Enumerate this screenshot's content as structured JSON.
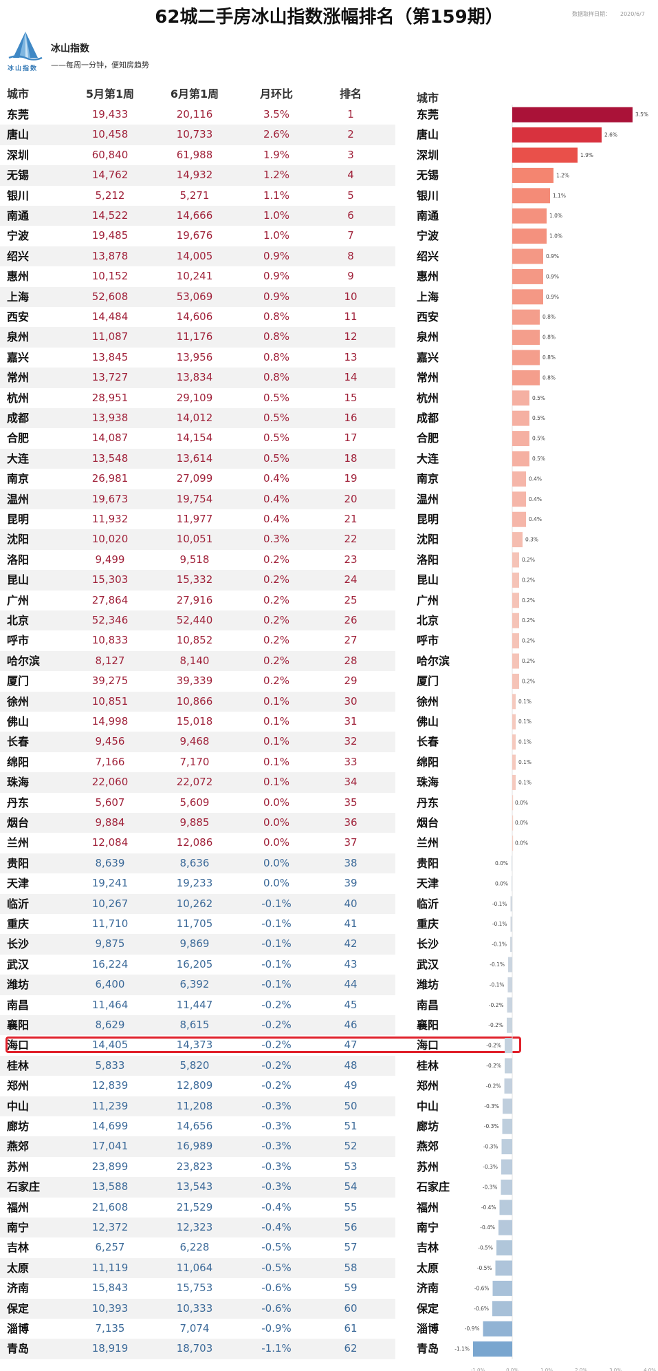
{
  "header": {
    "title": "62城二手房冰山指数涨幅排名（第159期）",
    "date_label": "数据取样日期：",
    "date_value": "2020/6/7"
  },
  "brand": {
    "logo_text": "冰山指数",
    "name": "冰山指数",
    "slogan": "——每周一分钟，便知房趋势"
  },
  "table": {
    "columns": [
      "城市",
      "5月第1周",
      "6月第1周",
      "月环比",
      "排名"
    ],
    "highlight_city": "海口",
    "colors": {
      "up": "#a0223a",
      "down": "#3c6a99"
    }
  },
  "chart_data": {
    "type": "bar",
    "orientation": "horizontal",
    "category_header": "城市",
    "unit": "%",
    "xlim": [
      -1.0,
      4.0
    ],
    "x_ticks": [
      "-1.0%",
      "0.0%",
      "1.0%",
      "2.0%",
      "3.0%",
      "4.0%"
    ],
    "rows": [
      {
        "city": "东莞",
        "may": "19,433",
        "jun": "20,116",
        "mom": "3.5%",
        "value": 3.5,
        "rank": "1"
      },
      {
        "city": "唐山",
        "may": "10,458",
        "jun": "10,733",
        "mom": "2.6%",
        "value": 2.6,
        "rank": "2"
      },
      {
        "city": "深圳",
        "may": "60,840",
        "jun": "61,988",
        "mom": "1.9%",
        "value": 1.9,
        "rank": "3"
      },
      {
        "city": "无锡",
        "may": "14,762",
        "jun": "14,932",
        "mom": "1.2%",
        "value": 1.2,
        "rank": "4"
      },
      {
        "city": "银川",
        "may": "5,212",
        "jun": "5,271",
        "mom": "1.1%",
        "value": 1.1,
        "rank": "5"
      },
      {
        "city": "南通",
        "may": "14,522",
        "jun": "14,666",
        "mom": "1.0%",
        "value": 1.0,
        "rank": "6"
      },
      {
        "city": "宁波",
        "may": "19,485",
        "jun": "19,676",
        "mom": "1.0%",
        "value": 1.0,
        "rank": "7"
      },
      {
        "city": "绍兴",
        "may": "13,878",
        "jun": "14,005",
        "mom": "0.9%",
        "value": 0.9,
        "rank": "8"
      },
      {
        "city": "惠州",
        "may": "10,152",
        "jun": "10,241",
        "mom": "0.9%",
        "value": 0.9,
        "rank": "9"
      },
      {
        "city": "上海",
        "may": "52,608",
        "jun": "53,069",
        "mom": "0.9%",
        "value": 0.9,
        "rank": "10"
      },
      {
        "city": "西安",
        "may": "14,484",
        "jun": "14,606",
        "mom": "0.8%",
        "value": 0.8,
        "rank": "11"
      },
      {
        "city": "泉州",
        "may": "11,087",
        "jun": "11,176",
        "mom": "0.8%",
        "value": 0.8,
        "rank": "12"
      },
      {
        "city": "嘉兴",
        "may": "13,845",
        "jun": "13,956",
        "mom": "0.8%",
        "value": 0.8,
        "rank": "13"
      },
      {
        "city": "常州",
        "may": "13,727",
        "jun": "13,834",
        "mom": "0.8%",
        "value": 0.8,
        "rank": "14"
      },
      {
        "city": "杭州",
        "may": "28,951",
        "jun": "29,109",
        "mom": "0.5%",
        "value": 0.5,
        "rank": "15"
      },
      {
        "city": "成都",
        "may": "13,938",
        "jun": "14,012",
        "mom": "0.5%",
        "value": 0.5,
        "rank": "16"
      },
      {
        "city": "合肥",
        "may": "14,087",
        "jun": "14,154",
        "mom": "0.5%",
        "value": 0.5,
        "rank": "17"
      },
      {
        "city": "大连",
        "may": "13,548",
        "jun": "13,614",
        "mom": "0.5%",
        "value": 0.5,
        "rank": "18"
      },
      {
        "city": "南京",
        "may": "26,981",
        "jun": "27,099",
        "mom": "0.4%",
        "value": 0.4,
        "rank": "19"
      },
      {
        "city": "温州",
        "may": "19,673",
        "jun": "19,754",
        "mom": "0.4%",
        "value": 0.4,
        "rank": "20"
      },
      {
        "city": "昆明",
        "may": "11,932",
        "jun": "11,977",
        "mom": "0.4%",
        "value": 0.4,
        "rank": "21"
      },
      {
        "city": "沈阳",
        "may": "10,020",
        "jun": "10,051",
        "mom": "0.3%",
        "value": 0.3,
        "rank": "22"
      },
      {
        "city": "洛阳",
        "may": "9,499",
        "jun": "9,518",
        "mom": "0.2%",
        "value": 0.2,
        "rank": "23"
      },
      {
        "city": "昆山",
        "may": "15,303",
        "jun": "15,332",
        "mom": "0.2%",
        "value": 0.2,
        "rank": "24"
      },
      {
        "city": "广州",
        "may": "27,864",
        "jun": "27,916",
        "mom": "0.2%",
        "value": 0.2,
        "rank": "25"
      },
      {
        "city": "北京",
        "may": "52,346",
        "jun": "52,440",
        "mom": "0.2%",
        "value": 0.2,
        "rank": "26"
      },
      {
        "city": "呼市",
        "may": "10,833",
        "jun": "10,852",
        "mom": "0.2%",
        "value": 0.2,
        "rank": "27"
      },
      {
        "city": "哈尔滨",
        "may": "8,127",
        "jun": "8,140",
        "mom": "0.2%",
        "value": 0.2,
        "rank": "28"
      },
      {
        "city": "厦门",
        "may": "39,275",
        "jun": "39,339",
        "mom": "0.2%",
        "value": 0.2,
        "rank": "29"
      },
      {
        "city": "徐州",
        "may": "10,851",
        "jun": "10,866",
        "mom": "0.1%",
        "value": 0.1,
        "rank": "30"
      },
      {
        "city": "佛山",
        "may": "14,998",
        "jun": "15,018",
        "mom": "0.1%",
        "value": 0.1,
        "rank": "31"
      },
      {
        "city": "长春",
        "may": "9,456",
        "jun": "9,468",
        "mom": "0.1%",
        "value": 0.1,
        "rank": "32"
      },
      {
        "city": "绵阳",
        "may": "7,166",
        "jun": "7,170",
        "mom": "0.1%",
        "value": 0.1,
        "rank": "33"
      },
      {
        "city": "珠海",
        "may": "22,060",
        "jun": "22,072",
        "mom": "0.1%",
        "value": 0.1,
        "rank": "34"
      },
      {
        "city": "丹东",
        "may": "5,607",
        "jun": "5,609",
        "mom": "0.0%",
        "value": 0.0,
        "rank": "35"
      },
      {
        "city": "烟台",
        "may": "9,884",
        "jun": "9,885",
        "mom": "0.0%",
        "value": 0.0,
        "rank": "36"
      },
      {
        "city": "兰州",
        "may": "12,084",
        "jun": "12,086",
        "mom": "0.0%",
        "value": 0.0,
        "rank": "37"
      },
      {
        "city": "贵阳",
        "may": "8,639",
        "jun": "8,636",
        "mom": "0.0%",
        "value": -0.02,
        "rank": "38"
      },
      {
        "city": "天津",
        "may": "19,241",
        "jun": "19,233",
        "mom": "0.0%",
        "value": -0.02,
        "rank": "39"
      },
      {
        "city": "临沂",
        "may": "10,267",
        "jun": "10,262",
        "mom": "-0.1%",
        "value": -0.05,
        "rank": "40"
      },
      {
        "city": "重庆",
        "may": "11,710",
        "jun": "11,705",
        "mom": "-0.1%",
        "value": -0.05,
        "rank": "41"
      },
      {
        "city": "长沙",
        "may": "9,875",
        "jun": "9,869",
        "mom": "-0.1%",
        "value": -0.06,
        "rank": "42"
      },
      {
        "city": "武汉",
        "may": "16,224",
        "jun": "16,205",
        "mom": "-0.1%",
        "value": -0.12,
        "rank": "43"
      },
      {
        "city": "潍坊",
        "may": "6,400",
        "jun": "6,392",
        "mom": "-0.1%",
        "value": -0.13,
        "rank": "44"
      },
      {
        "city": "南昌",
        "may": "11,464",
        "jun": "11,447",
        "mom": "-0.2%",
        "value": -0.15,
        "rank": "45"
      },
      {
        "city": "襄阳",
        "may": "8,629",
        "jun": "8,615",
        "mom": "-0.2%",
        "value": -0.16,
        "rank": "46"
      },
      {
        "city": "海口",
        "may": "14,405",
        "jun": "14,373",
        "mom": "-0.2%",
        "value": -0.22,
        "rank": "47"
      },
      {
        "city": "桂林",
        "may": "5,833",
        "jun": "5,820",
        "mom": "-0.2%",
        "value": -0.22,
        "rank": "48"
      },
      {
        "city": "郑州",
        "may": "12,839",
        "jun": "12,809",
        "mom": "-0.2%",
        "value": -0.23,
        "rank": "49"
      },
      {
        "city": "中山",
        "may": "11,239",
        "jun": "11,208",
        "mom": "-0.3%",
        "value": -0.28,
        "rank": "50"
      },
      {
        "city": "廊坊",
        "may": "14,699",
        "jun": "14,656",
        "mom": "-0.3%",
        "value": -0.29,
        "rank": "51"
      },
      {
        "city": "燕郊",
        "may": "17,041",
        "jun": "16,989",
        "mom": "-0.3%",
        "value": -0.31,
        "rank": "52"
      },
      {
        "city": "苏州",
        "may": "23,899",
        "jun": "23,823",
        "mom": "-0.3%",
        "value": -0.32,
        "rank": "53"
      },
      {
        "city": "石家庄",
        "may": "13,588",
        "jun": "13,543",
        "mom": "-0.3%",
        "value": -0.33,
        "rank": "54"
      },
      {
        "city": "福州",
        "may": "21,608",
        "jun": "21,529",
        "mom": "-0.4%",
        "value": -0.37,
        "rank": "55"
      },
      {
        "city": "南宁",
        "may": "12,372",
        "jun": "12,323",
        "mom": "-0.4%",
        "value": -0.4,
        "rank": "56"
      },
      {
        "city": "吉林",
        "may": "6,257",
        "jun": "6,228",
        "mom": "-0.5%",
        "value": -0.46,
        "rank": "57"
      },
      {
        "city": "太原",
        "may": "11,119",
        "jun": "11,064",
        "mom": "-0.5%",
        "value": -0.49,
        "rank": "58"
      },
      {
        "city": "济南",
        "may": "15,843",
        "jun": "15,753",
        "mom": "-0.6%",
        "value": -0.57,
        "rank": "59"
      },
      {
        "city": "保定",
        "may": "10,393",
        "jun": "10,333",
        "mom": "-0.6%",
        "value": -0.58,
        "rank": "60"
      },
      {
        "city": "淄博",
        "may": "7,135",
        "jun": "7,074",
        "mom": "-0.9%",
        "value": -0.85,
        "rank": "61"
      },
      {
        "city": "青岛",
        "may": "18,919",
        "jun": "18,703",
        "mom": "-1.1%",
        "value": -1.14,
        "rank": "62"
      }
    ]
  }
}
